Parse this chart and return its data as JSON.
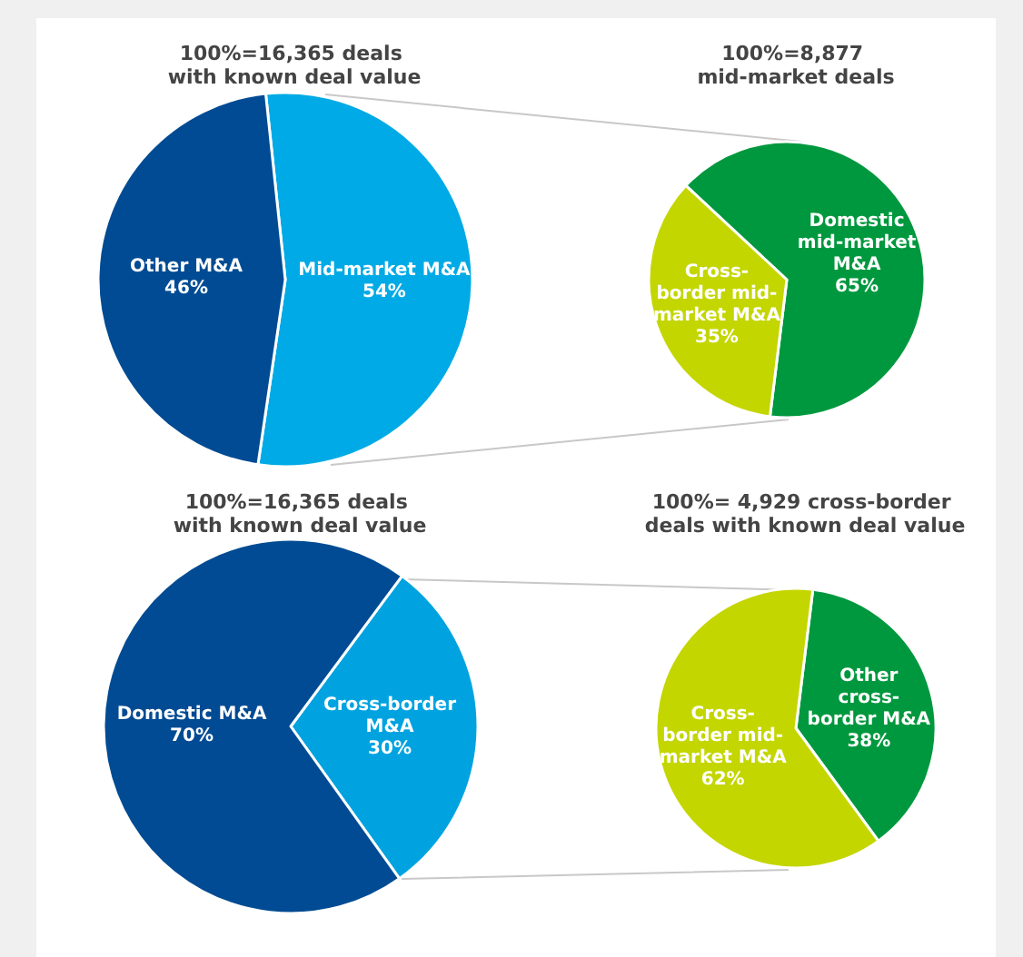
{
  "chart_data": [
    {
      "type": "pie",
      "title": "100%=16,365 deals with known deal value",
      "categories": [
        "Mid-market M&A",
        "Other M&A"
      ],
      "values": [
        54,
        46
      ],
      "colors": [
        "#00aae6",
        "#004b93"
      ],
      "value_labels": [
        "54%",
        "46%"
      ]
    },
    {
      "type": "pie",
      "title": "100%=8,877 mid-market deals",
      "categories": [
        "Domestic mid-market M&A",
        "Cross-border mid-market M&A"
      ],
      "values": [
        65,
        35
      ],
      "colors": [
        "#00983e",
        "#c4d600"
      ],
      "value_labels": [
        "65%",
        "35%"
      ]
    },
    {
      "type": "pie",
      "title": "100%=16,365 deals with known deal value",
      "categories": [
        "Cross-border M&A",
        "Domestic M&A"
      ],
      "values": [
        30,
        70
      ],
      "colors": [
        "#00a3e0",
        "#004b93"
      ],
      "value_labels": [
        "30%",
        "70%"
      ]
    },
    {
      "type": "pie",
      "title": "100%= 4,929 cross-border deals with known deal value",
      "categories": [
        "Other cross-border M&A",
        "Cross-border mid-market M&A"
      ],
      "values": [
        38,
        62
      ],
      "colors": [
        "#00983e",
        "#c4d600"
      ],
      "value_labels": [
        "38%",
        "62%"
      ]
    }
  ]
}
